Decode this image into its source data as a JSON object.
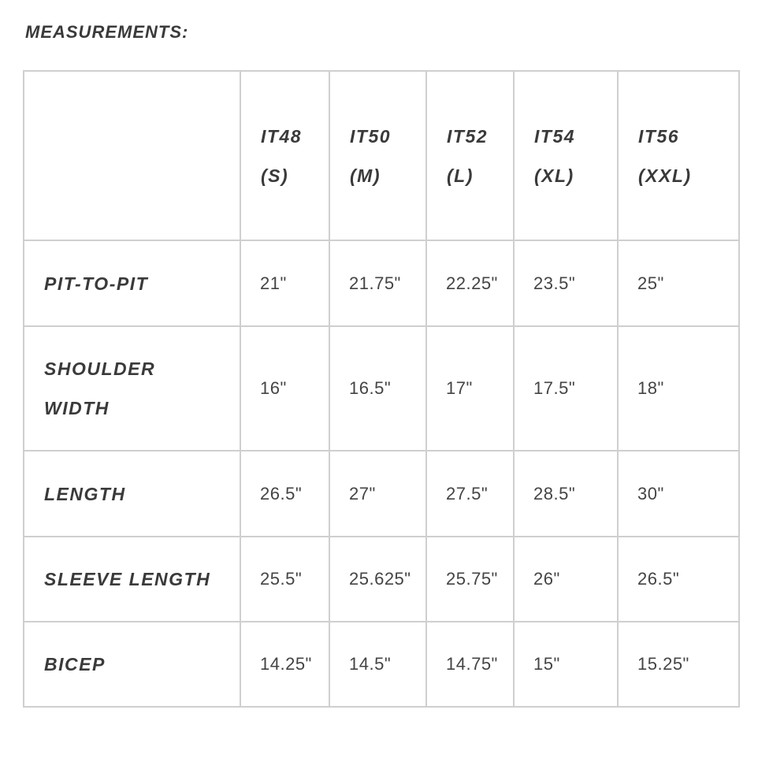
{
  "title": "MEASUREMENTS:",
  "columns": [
    {
      "code": "IT48",
      "size": "(S)"
    },
    {
      "code": "IT50",
      "size": "(M)"
    },
    {
      "code": "IT52",
      "size": "(L)"
    },
    {
      "code": "IT54",
      "size": "(XL)"
    },
    {
      "code": "IT56",
      "size": "(XXL)"
    }
  ],
  "rows": [
    {
      "label": [
        "PIT-TO-PIT"
      ],
      "values": [
        "21\"",
        "21.75\"",
        "22.25\"",
        "23.5\"",
        "25\""
      ]
    },
    {
      "label": [
        "SHOULDER",
        "WIDTH"
      ],
      "values": [
        "16\"",
        "16.5\"",
        "17\"",
        "17.5\"",
        "18\""
      ]
    },
    {
      "label": [
        "LENGTH"
      ],
      "values": [
        "26.5\"",
        "27\"",
        "27.5\"",
        "28.5\"",
        "30\""
      ]
    },
    {
      "label": [
        "SLEEVE LENGTH"
      ],
      "values": [
        "25.5\"",
        "25.625\"",
        "25.75\"",
        "26\"",
        "26.5\""
      ]
    },
    {
      "label": [
        "BICEP"
      ],
      "values": [
        "14.25\"",
        "14.5\"",
        "14.75\"",
        "15\"",
        "15.25\""
      ]
    }
  ],
  "colors": {
    "text": "#444444",
    "border": "#cfcfcf"
  }
}
